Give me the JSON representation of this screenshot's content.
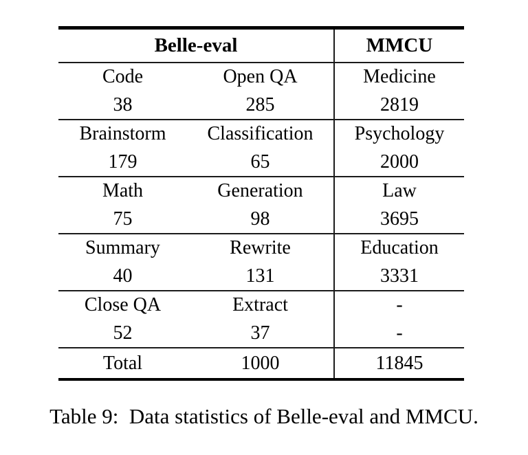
{
  "table": {
    "header": {
      "belle": "Belle-eval",
      "mmcu": "MMCU"
    },
    "rows": [
      {
        "cells": [
          {
            "label": "Code",
            "value": "38"
          },
          {
            "label": "Open QA",
            "value": "285"
          },
          {
            "label": "Medicine",
            "value": "2819"
          }
        ]
      },
      {
        "cells": [
          {
            "label": "Brainstorm",
            "value": "179"
          },
          {
            "label": "Classification",
            "value": "65"
          },
          {
            "label": "Psychology",
            "value": "2000"
          }
        ]
      },
      {
        "cells": [
          {
            "label": "Math",
            "value": "75"
          },
          {
            "label": "Generation",
            "value": "98"
          },
          {
            "label": "Law",
            "value": "3695"
          }
        ]
      },
      {
        "cells": [
          {
            "label": "Summary",
            "value": "40"
          },
          {
            "label": "Rewrite",
            "value": "131"
          },
          {
            "label": "Education",
            "value": "3331"
          }
        ]
      },
      {
        "cells": [
          {
            "label": "Close QA",
            "value": "52"
          },
          {
            "label": "Extract",
            "value": "37"
          },
          {
            "label": "-",
            "value": "-"
          }
        ]
      }
    ],
    "total": {
      "label": "Total",
      "belle_value": "1000",
      "mmcu_value": "11845"
    }
  },
  "caption": "Table 9:  Data statistics of Belle-eval and MMCU.",
  "colors": {
    "text": "#000000",
    "rule": "#1a1a1a",
    "background": "#ffffff"
  }
}
